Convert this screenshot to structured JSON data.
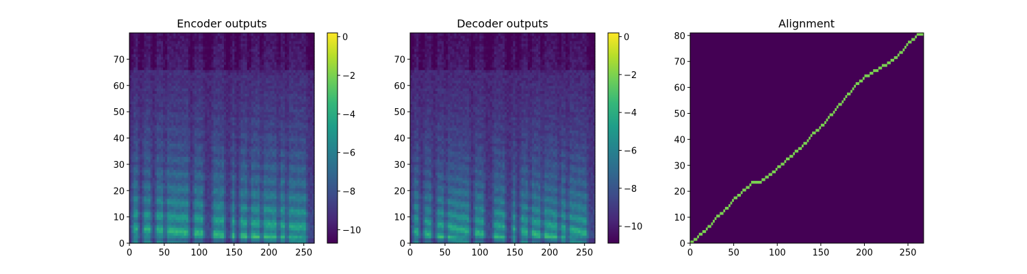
{
  "chart_data": [
    {
      "type": "heatmap",
      "title": "Encoder outputs",
      "xlabel": "",
      "ylabel": "",
      "xlim": [
        0,
        265
      ],
      "ylim": [
        0,
        80
      ],
      "xticks": [
        0,
        50,
        100,
        150,
        200,
        250
      ],
      "yticks": [
        0,
        10,
        20,
        30,
        40,
        50,
        60,
        70
      ],
      "colormap": "viridis",
      "colorbar": {
        "range": [
          -10.7,
          0.2
        ],
        "ticks": [
          0,
          -2,
          -4,
          -6,
          -8,
          -10
        ],
        "tick_labels": [
          "0",
          "−2",
          "−4",
          "−6",
          "−8",
          "−10"
        ]
      },
      "approx_description": "mel spectrogram: high energy (≈0) in low mel bins 0–20 during voiced segments, low energy (≈−10) in high bins"
    },
    {
      "type": "heatmap",
      "title": "Decoder outputs",
      "xlabel": "",
      "ylabel": "",
      "xlim": [
        0,
        265
      ],
      "ylim": [
        0,
        80
      ],
      "xticks": [
        0,
        50,
        100,
        150,
        200,
        250
      ],
      "yticks": [
        0,
        10,
        20,
        30,
        40,
        50,
        60,
        70
      ],
      "colormap": "viridis",
      "colorbar": {
        "range": [
          -10.9,
          0.2
        ],
        "ticks": [
          0,
          -2,
          -4,
          -6,
          -8,
          -10
        ],
        "tick_labels": [
          "0",
          "−2",
          "−4",
          "−6",
          "−8",
          "−10"
        ]
      },
      "approx_description": "mel spectrogram with sharper harmonic stripes than encoder outputs"
    },
    {
      "type": "heatmap",
      "title": "Alignment",
      "xlabel": "",
      "ylabel": "",
      "xlim": [
        0,
        268
      ],
      "ylim": [
        0,
        81
      ],
      "xticks": [
        0,
        50,
        100,
        150,
        200,
        250
      ],
      "yticks": [
        0,
        10,
        20,
        30,
        40,
        50,
        60,
        70,
        80
      ],
      "colormap": "viridis",
      "background_color": "#440154",
      "line_color": "#7ad151",
      "alignment_path": [
        [
          0,
          0
        ],
        [
          10,
          3
        ],
        [
          20,
          6
        ],
        [
          30,
          10
        ],
        [
          40,
          13
        ],
        [
          50,
          17
        ],
        [
          60,
          20
        ],
        [
          70,
          23
        ],
        [
          80,
          23.5
        ],
        [
          90,
          26
        ],
        [
          100,
          29
        ],
        [
          110,
          32
        ],
        [
          120,
          35
        ],
        [
          130,
          38
        ],
        [
          140,
          42
        ],
        [
          150,
          45
        ],
        [
          160,
          49
        ],
        [
          170,
          53
        ],
        [
          180,
          57
        ],
        [
          190,
          61
        ],
        [
          200,
          64
        ],
        [
          210,
          66
        ],
        [
          220,
          68
        ],
        [
          230,
          70
        ],
        [
          240,
          73
        ],
        [
          250,
          77
        ],
        [
          260,
          80
        ],
        [
          268,
          80
        ]
      ]
    }
  ],
  "colors": {
    "viridis": [
      "#440154",
      "#482878",
      "#3e4a89",
      "#31688e",
      "#26828e",
      "#1f9e89",
      "#35b779",
      "#6ece58",
      "#b5de2b",
      "#fde725"
    ]
  }
}
